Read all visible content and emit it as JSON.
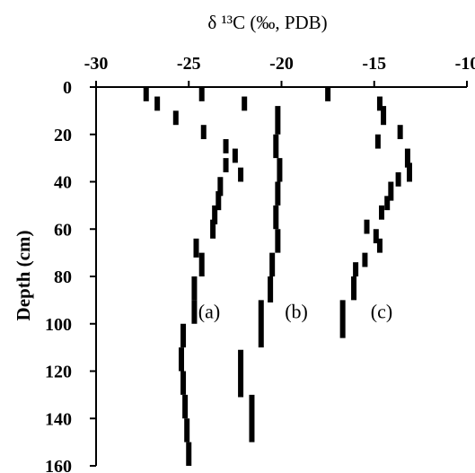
{
  "chart_data": {
    "type": "scatter",
    "xlabel": "δ ¹³C (‰, PDB)",
    "ylabel": "Depth (cm)",
    "xlim": [
      -30,
      -10
    ],
    "ylim": [
      0,
      160
    ],
    "x_axis_position": "top",
    "y_axis_inverted": true,
    "grid": false,
    "legend": "none",
    "marker": "short vertical bar",
    "color": "#000000",
    "x_ticks": [
      -30,
      -25,
      -20,
      -15,
      -10
    ],
    "y_ticks": [
      0,
      20,
      40,
      60,
      80,
      100,
      120,
      140,
      160
    ],
    "x_tick_labels": [
      "-30",
      "-25",
      "-20",
      "-15",
      "-10"
    ],
    "y_tick_labels": [
      "0",
      "20",
      "40",
      "60",
      "80",
      "100",
      "120",
      "140",
      "160"
    ],
    "annotations": [
      {
        "text": "(a)",
        "x": -23.9,
        "y": 95
      },
      {
        "text": "(b)",
        "x": -19.2,
        "y": 95
      },
      {
        "text": "(c)",
        "x": -14.6,
        "y": 95
      }
    ],
    "series": [
      {
        "points": [
          {
            "x": -27.3,
            "from": 0,
            "to": 6
          },
          {
            "x": -24.3,
            "from": 0,
            "to": 6
          },
          {
            "x": -26.7,
            "from": 4,
            "to": 10
          },
          {
            "x": -22.0,
            "from": 4,
            "to": 10
          },
          {
            "x": -25.7,
            "from": 10,
            "to": 16
          },
          {
            "x": -24.2,
            "from": 16,
            "to": 22
          },
          {
            "x": -23.0,
            "from": 22,
            "to": 28
          },
          {
            "x": -22.5,
            "from": 26,
            "to": 32
          },
          {
            "x": -23.0,
            "from": 30,
            "to": 36
          },
          {
            "x": -22.2,
            "from": 34,
            "to": 40
          },
          {
            "x": -23.3,
            "from": 38,
            "to": 46
          },
          {
            "x": -23.4,
            "from": 44,
            "to": 52
          },
          {
            "x": -23.6,
            "from": 50,
            "to": 58
          },
          {
            "x": -23.7,
            "from": 56,
            "to": 64
          },
          {
            "x": -24.6,
            "from": 64,
            "to": 72
          },
          {
            "x": -24.3,
            "from": 70,
            "to": 80
          },
          {
            "x": -24.7,
            "from": 80,
            "to": 90
          },
          {
            "x": -24.7,
            "from": 90,
            "to": 100
          },
          {
            "x": -25.3,
            "from": 100,
            "to": 110
          },
          {
            "x": -25.4,
            "from": 110,
            "to": 120
          },
          {
            "x": -25.3,
            "from": 120,
            "to": 130
          },
          {
            "x": -25.2,
            "from": 130,
            "to": 140
          },
          {
            "x": -25.1,
            "from": 140,
            "to": 150
          },
          {
            "x": -25.0,
            "from": 150,
            "to": 160
          }
        ]
      },
      {
        "points": [
          {
            "x": -20.2,
            "from": 8,
            "to": 20
          },
          {
            "x": -20.3,
            "from": 20,
            "to": 30
          },
          {
            "x": -20.1,
            "from": 30,
            "to": 40
          },
          {
            "x": -20.2,
            "from": 40,
            "to": 50
          },
          {
            "x": -20.3,
            "from": 50,
            "to": 60
          },
          {
            "x": -20.2,
            "from": 60,
            "to": 70
          },
          {
            "x": -20.5,
            "from": 70,
            "to": 80
          },
          {
            "x": -20.6,
            "from": 80,
            "to": 91
          },
          {
            "x": -21.1,
            "from": 90,
            "to": 110
          },
          {
            "x": -22.2,
            "from": 111,
            "to": 131
          },
          {
            "x": -21.6,
            "from": 130,
            "to": 150
          }
        ]
      },
      {
        "points": [
          {
            "x": -17.5,
            "from": 0,
            "to": 6
          },
          {
            "x": -14.7,
            "from": 4,
            "to": 10
          },
          {
            "x": -14.5,
            "from": 8,
            "to": 16
          },
          {
            "x": -13.6,
            "from": 16,
            "to": 22
          },
          {
            "x": -14.8,
            "from": 20,
            "to": 26
          },
          {
            "x": -13.2,
            "from": 26,
            "to": 34
          },
          {
            "x": -13.1,
            "from": 32,
            "to": 40
          },
          {
            "x": -13.7,
            "from": 36,
            "to": 42
          },
          {
            "x": -14.1,
            "from": 40,
            "to": 48
          },
          {
            "x": -14.3,
            "from": 46,
            "to": 52
          },
          {
            "x": -14.6,
            "from": 50,
            "to": 56
          },
          {
            "x": -15.4,
            "from": 56,
            "to": 62
          },
          {
            "x": -14.9,
            "from": 60,
            "to": 66
          },
          {
            "x": -14.7,
            "from": 64,
            "to": 70
          },
          {
            "x": -15.5,
            "from": 70,
            "to": 76
          },
          {
            "x": -16.0,
            "from": 74,
            "to": 80
          },
          {
            "x": -16.1,
            "from": 80,
            "to": 90
          },
          {
            "x": -16.7,
            "from": 90,
            "to": 106
          }
        ]
      }
    ]
  }
}
